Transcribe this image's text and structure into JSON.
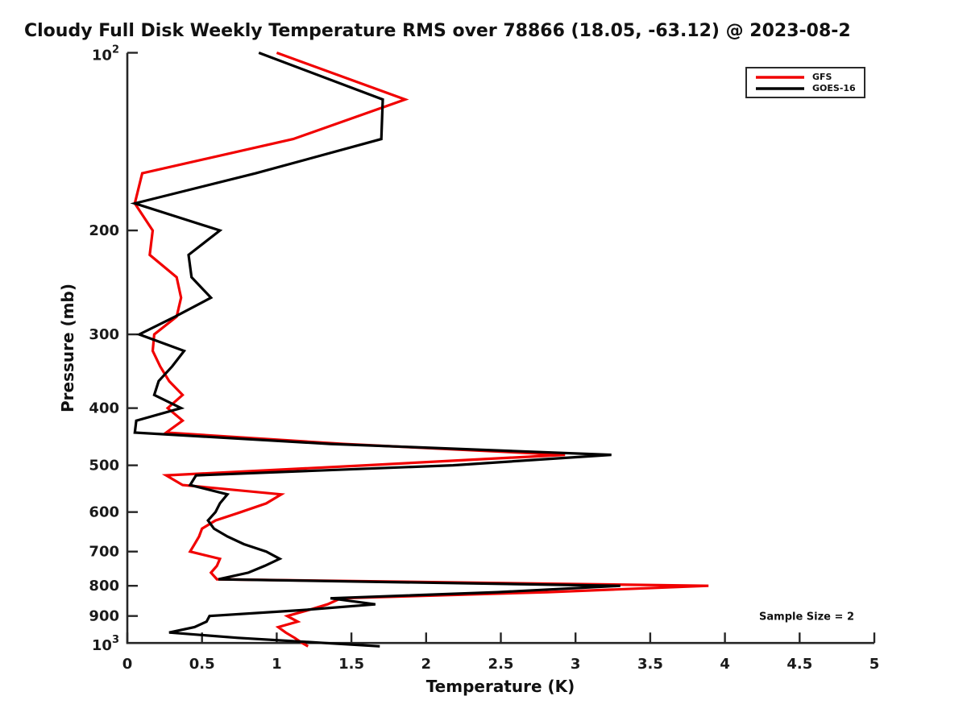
{
  "title": "Cloudy Full Disk Weekly Temperature RMS over 78866 (18.05, -63.12) @ 2023-08-2",
  "annotation": "Sample Size = 2",
  "colors": {
    "axis": "#262626",
    "text": "#111111",
    "background": "#ffffff",
    "gfs": "#f10000",
    "goes16": "#000000"
  },
  "legend": {
    "items": [
      {
        "label": "GFS",
        "color": "#f10000"
      },
      {
        "label": "GOES-16",
        "color": "#000000"
      }
    ]
  },
  "chart_data": {
    "type": "line",
    "title": "Cloudy Full Disk Weekly Temperature RMS over 78866 (18.05, -63.12) @ 2023-08-2",
    "xlabel": "Temperature (K)",
    "ylabel": "Pressure (mb)",
    "xlim": [
      0,
      5
    ],
    "x_ticks": [
      0,
      0.5,
      1,
      1.5,
      2,
      2.5,
      3,
      3.5,
      4,
      4.5,
      5
    ],
    "x_tick_labels": [
      "0",
      "0.5",
      "1",
      "1.5",
      "2",
      "2.5",
      "3",
      "3.5",
      "4",
      "4.5",
      "5"
    ],
    "y_scale": "log",
    "y_inverted": true,
    "ylim": [
      100,
      1000
    ],
    "y_ticks": [
      100,
      200,
      300,
      400,
      500,
      600,
      700,
      800,
      900,
      1000
    ],
    "y_tick_labels": [
      "10^2",
      "200",
      "300",
      "400",
      "500",
      "600",
      "700",
      "800",
      "900",
      "10^3"
    ],
    "grid": false,
    "legend_position": "upper right",
    "annotation": "Sample Size = 2",
    "pressure_levels_mb": [
      100,
      120,
      140,
      160,
      180,
      200,
      220,
      240,
      260,
      280,
      300,
      320,
      340,
      360,
      380,
      400,
      420,
      440,
      460,
      480,
      500,
      520,
      540,
      560,
      580,
      600,
      620,
      640,
      660,
      680,
      700,
      720,
      740,
      760,
      780,
      800,
      820,
      840,
      860,
      880,
      900,
      920,
      940,
      960,
      980,
      1000,
      1013
    ],
    "series": [
      {
        "name": "GFS",
        "color": "#f10000",
        "values_K": [
          1.0,
          1.86,
          1.11,
          0.1,
          0.05,
          0.17,
          0.15,
          0.33,
          0.36,
          0.33,
          0.18,
          0.17,
          0.22,
          0.28,
          0.37,
          0.27,
          0.37,
          0.26,
          1.45,
          2.93,
          1.6,
          0.26,
          0.37,
          1.03,
          0.93,
          0.76,
          0.59,
          0.5,
          0.48,
          0.45,
          0.42,
          0.62,
          0.6,
          0.56,
          0.6,
          3.89,
          2.81,
          1.43,
          1.34,
          1.21,
          1.07,
          1.14,
          1.01,
          1.06,
          1.12,
          1.17,
          1.21
        ]
      },
      {
        "name": "GOES-16",
        "color": "#000000",
        "values_K": [
          0.88,
          1.71,
          1.7,
          0.86,
          0.05,
          0.62,
          0.41,
          0.43,
          0.56,
          0.32,
          0.08,
          0.38,
          0.3,
          0.21,
          0.18,
          0.36,
          0.06,
          0.05,
          1.36,
          3.24,
          2.18,
          0.46,
          0.42,
          0.67,
          0.62,
          0.59,
          0.54,
          0.58,
          0.67,
          0.78,
          0.93,
          1.02,
          0.92,
          0.81,
          0.61,
          3.3,
          2.48,
          1.36,
          1.66,
          1.16,
          0.55,
          0.53,
          0.45,
          0.28,
          0.74,
          1.32,
          1.69
        ]
      }
    ]
  }
}
